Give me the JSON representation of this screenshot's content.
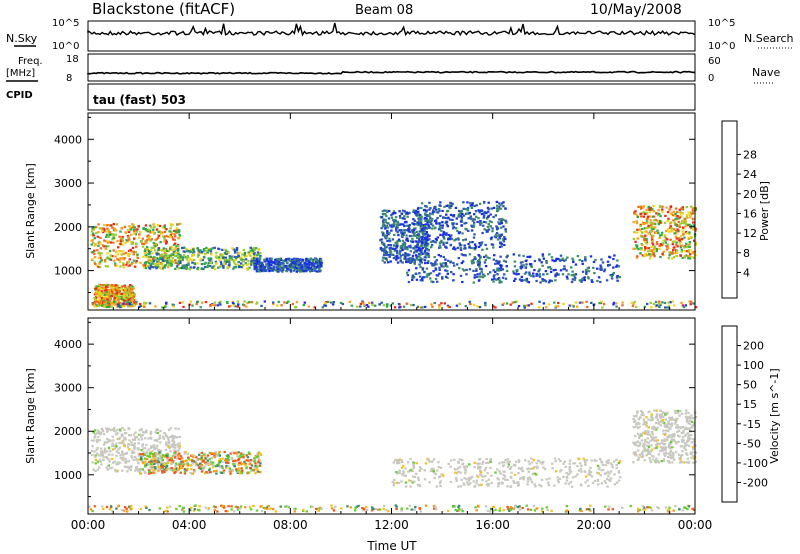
{
  "header": {
    "station": "Blackstone (fitACF)",
    "beam": "Beam 08",
    "date": "10/May/2008"
  },
  "top_panels": {
    "nsky_label": "N.Sky",
    "nsearch_label": "N.Search",
    "nsky_ticks": [
      "10^5",
      "10^0"
    ],
    "freq_label": "Freq.",
    "freq_unit": "[MHz]",
    "freq_ticks": [
      "18",
      "8"
    ],
    "nave_label": "Nave",
    "nave_ticks": [
      "60",
      "0"
    ],
    "cpid_label": "CPID",
    "cpid_value": "tau (fast) 503"
  },
  "chart_data": [
    {
      "type": "heatmap",
      "parameter": "Power",
      "unit": "[dB]",
      "ylabel": "Slant Range [km]",
      "ylim": [
        100,
        4600
      ],
      "yticks": [
        1000,
        2000,
        3000,
        4000
      ],
      "xlim": [
        0,
        24
      ],
      "xticks": [
        "00:00",
        "04:00",
        "08:00",
        "12:00",
        "16:00",
        "20:00",
        "00:00"
      ],
      "colorbar_ticks": [
        "4",
        "8",
        "12",
        "16",
        "20",
        "24",
        "28"
      ],
      "colorbar_colors": [
        "#1a2ee6",
        "#2a54b8",
        "#3c8c6a",
        "#2fa84a",
        "#9acd32",
        "#f2d21c",
        "#f7a21c",
        "#f26a1a",
        "#e8281c"
      ],
      "echo_regions": [
        {
          "t0": 0.1,
          "t1": 3.6,
          "r0": 1100,
          "r1": 2100,
          "level": "high"
        },
        {
          "t0": 2.2,
          "t1": 6.8,
          "r0": 1050,
          "r1": 1550,
          "level": "medium"
        },
        {
          "t0": 6.5,
          "t1": 9.2,
          "r0": 1000,
          "r1": 1300,
          "level": "low"
        },
        {
          "t0": 11.5,
          "t1": 13.5,
          "r0": 1200,
          "r1": 2400,
          "level": "low"
        },
        {
          "t0": 12.5,
          "t1": 21.0,
          "r0": 750,
          "r1": 1400,
          "level": "low"
        },
        {
          "t0": 13.0,
          "t1": 16.5,
          "r0": 1500,
          "r1": 2600,
          "level": "low"
        },
        {
          "t0": 21.5,
          "t1": 24.0,
          "r0": 1300,
          "r1": 2500,
          "level": "high"
        },
        {
          "t0": 0.2,
          "t1": 1.8,
          "r0": 200,
          "r1": 700,
          "level": "high"
        },
        {
          "t0": 0.0,
          "t1": 24.0,
          "r0": 180,
          "r1": 320,
          "level": "mixed"
        }
      ]
    },
    {
      "type": "heatmap",
      "parameter": "Velocity",
      "unit": "[m s^-1]",
      "ylabel": "Slant Range [km]",
      "xlabel": "Time UT",
      "ylim": [
        100,
        4600
      ],
      "yticks": [
        1000,
        2000,
        3000,
        4000
      ],
      "xlim": [
        0,
        24
      ],
      "xticks": [
        "00:00",
        "04:00",
        "08:00",
        "12:00",
        "16:00",
        "20:00",
        "00:00"
      ],
      "colorbar_ticks": [
        "200",
        "100",
        "50",
        "15",
        "-15",
        "-50",
        "-100",
        "-200"
      ],
      "colorbar_colors": [
        "#1a2ee6",
        "#2a54b8",
        "#3c8c6a",
        "#66cc33",
        "#c8c8c0",
        "#f2c21c",
        "#f7921c",
        "#f2561a",
        "#e8201c"
      ],
      "echo_regions": [
        {
          "t0": 0.1,
          "t1": 3.6,
          "r0": 1100,
          "r1": 2100,
          "level": "near-zero"
        },
        {
          "t0": 2.0,
          "t1": 6.8,
          "r0": 1050,
          "r1": 1550,
          "level": "mixed"
        },
        {
          "t0": 12.0,
          "t1": 21.0,
          "r0": 750,
          "r1": 1400,
          "level": "near-zero"
        },
        {
          "t0": 21.5,
          "t1": 24.0,
          "r0": 1300,
          "r1": 2500,
          "level": "near-zero"
        },
        {
          "t0": 0.0,
          "t1": 24.0,
          "r0": 180,
          "r1": 320,
          "level": "mixed"
        }
      ]
    }
  ],
  "colors": {
    "frame": "#000000",
    "background": "#ffffff"
  }
}
